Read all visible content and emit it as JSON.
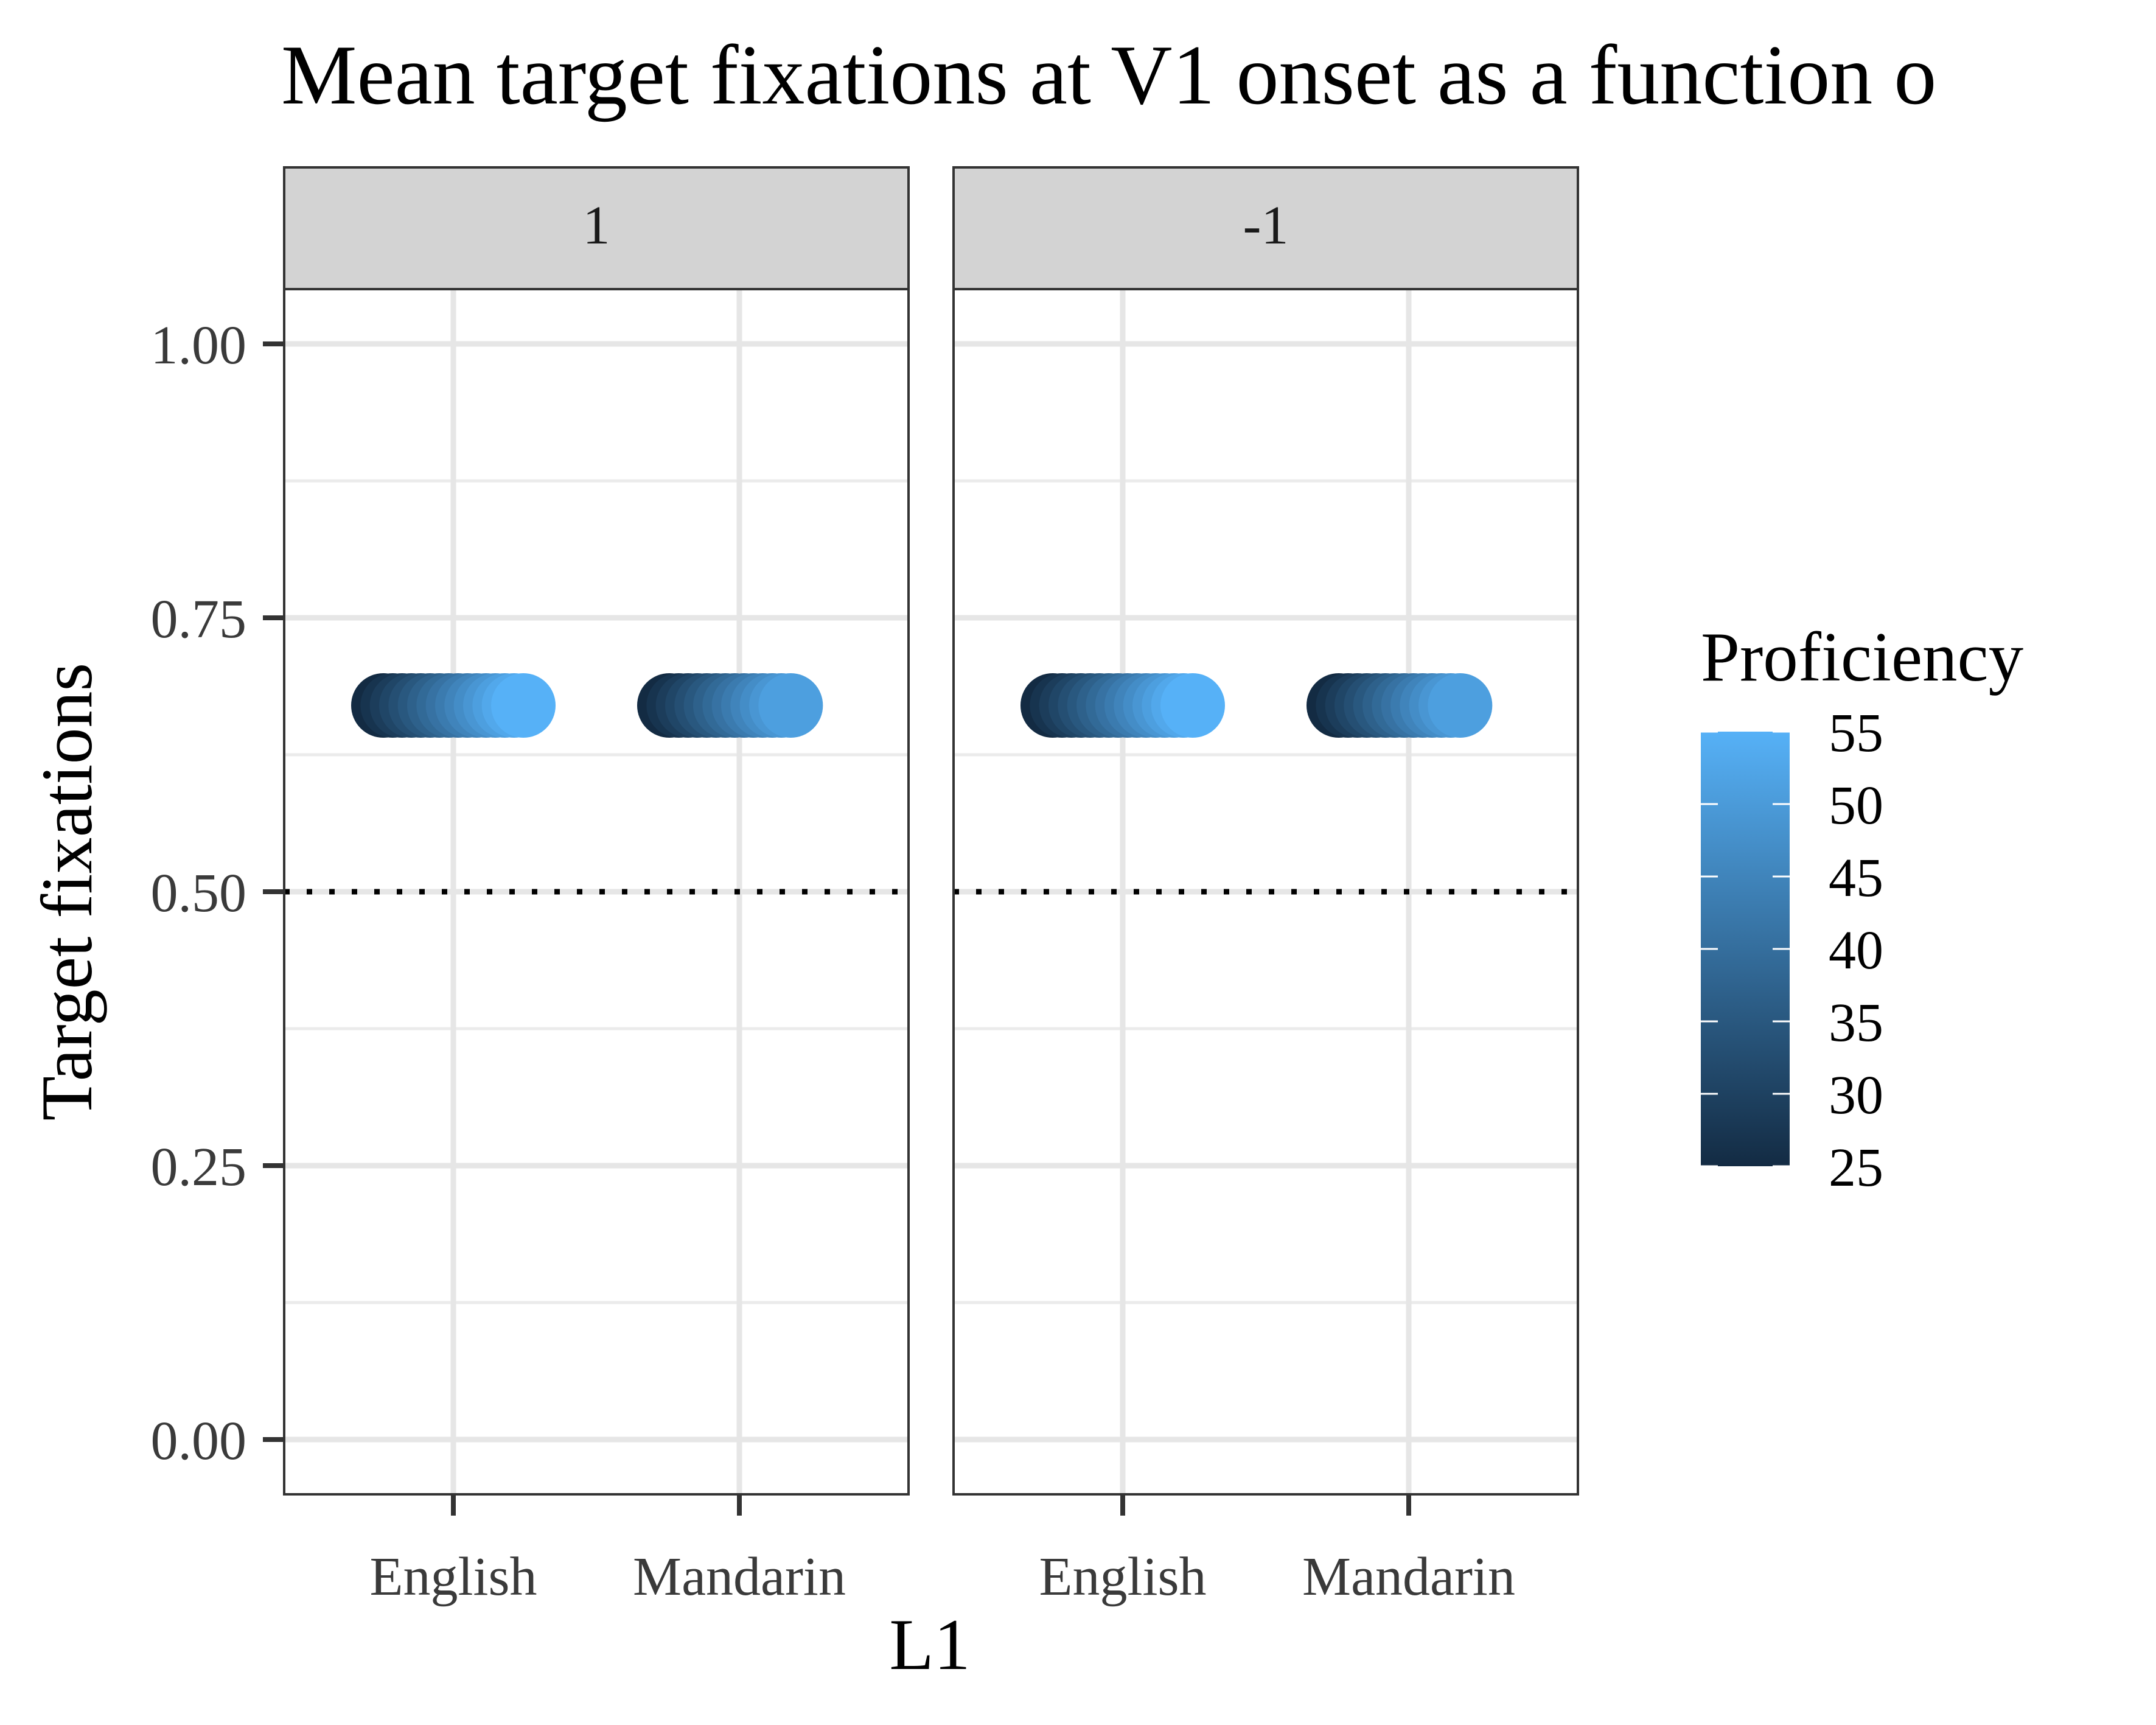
{
  "chart_data": {
    "type": "scatter",
    "title": "Mean target fixations at V1 onset as a function o",
    "xlabel": "L1",
    "ylabel": "Target fixations",
    "ylim": [
      -0.05,
      1.05
    ],
    "y_ticks": [
      "0.00",
      "0.25",
      "0.50",
      "0.75",
      "1.00"
    ],
    "y_tick_values": [
      0,
      0.25,
      0.5,
      0.75,
      1.0
    ],
    "categories": [
      "English",
      "Mandarin"
    ],
    "facets": [
      {
        "label": "1",
        "series": [
          {
            "category": "English",
            "y": 0.67,
            "proficiency": [
              25,
              27,
              29,
              31,
              33,
              35,
              37,
              39,
              41,
              43,
              45,
              47,
              49,
              51,
              53,
              55
            ]
          },
          {
            "category": "Mandarin",
            "y": 0.67,
            "proficiency": [
              25,
              27,
              29,
              31,
              33,
              35,
              37,
              39,
              41,
              43,
              45,
              47,
              49,
              51
            ]
          }
        ]
      },
      {
        "label": "-1",
        "series": [
          {
            "category": "English",
            "y": 0.67,
            "proficiency": [
              25,
              27,
              29,
              31,
              33,
              35,
              37,
              39,
              41,
              43,
              45,
              47,
              49,
              51,
              53,
              55
            ]
          },
          {
            "category": "Mandarin",
            "y": 0.67,
            "proficiency": [
              25,
              27,
              29,
              31,
              33,
              35,
              37,
              39,
              41,
              43,
              45,
              47,
              49,
              51
            ]
          }
        ]
      }
    ],
    "reference_line": {
      "y": 0.5,
      "style": "dotted"
    },
    "grid": true,
    "legend": {
      "title": "Proficiency",
      "placement": "right",
      "range": [
        25,
        55
      ],
      "ticks": [
        "25",
        "30",
        "35",
        "40",
        "45",
        "50",
        "55"
      ],
      "tick_values": [
        25,
        30,
        35,
        40,
        45,
        50,
        55
      ],
      "color_low": "#132B43",
      "color_high": "#56B1F7"
    }
  }
}
